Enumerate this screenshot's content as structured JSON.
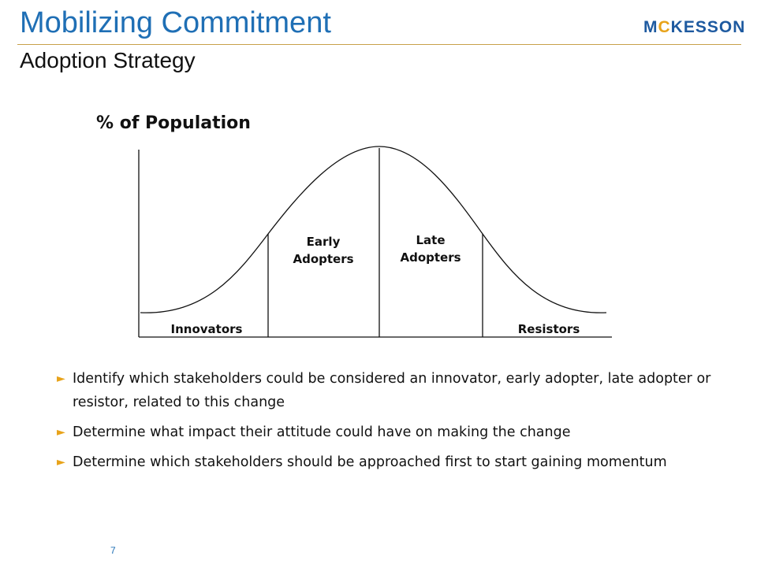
{
  "slide": {
    "title": "Mobilizing Commitment",
    "subtitle": "Adoption Strategy",
    "logo_text_a": "M",
    "logo_text_b": "C",
    "logo_text_c": "KESSON",
    "page_number": "7"
  },
  "diagram": {
    "y_label": "% of Population",
    "segments": {
      "innovators": "Innovators",
      "early_line1": "Early",
      "early_line2": "Adopters",
      "late_line1": "Late",
      "late_line2": "Adopters",
      "resistors": "Resistors"
    }
  },
  "bullets": [
    "Identify which stakeholders could be considered an innovator, early adopter, late adopter or resistor, related to this change",
    "Determine what impact their attitude could have on making the change",
    "Determine which stakeholders should be approached first to start gaining momentum"
  ],
  "colors": {
    "title": "#1f6fb5",
    "accent": "#e8a31a",
    "rule": "#c8a14a",
    "logo": "#1e5aa0"
  }
}
